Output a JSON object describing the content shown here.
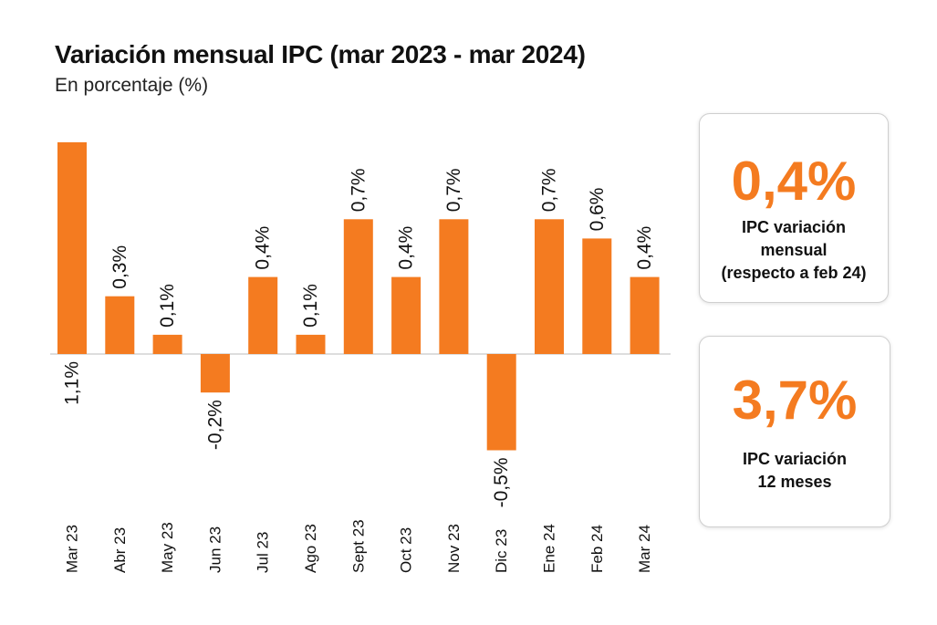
{
  "title": "Variación mensual IPC (mar 2023 - mar 2024)",
  "subtitle": "En porcentaje (%)",
  "colors": {
    "bar": "#f47b20",
    "accent": "#f47b20",
    "axis": "#bbbbbb"
  },
  "chart_data": {
    "type": "bar",
    "title": "Variación mensual IPC (mar 2023 - mar 2024)",
    "ylabel": "En porcentaje (%)",
    "ylim": [
      -0.6,
      1.2
    ],
    "categories": [
      "Mar 23",
      "Abr 23",
      "May 23",
      "Jun 23",
      "Jul 23",
      "Ago 23",
      "Sept 23",
      "Oct 23",
      "Nov 23",
      "Dic 23",
      "Ene 24",
      "Feb 24",
      "Mar 24"
    ],
    "values": [
      1.1,
      0.3,
      0.1,
      -0.2,
      0.4,
      0.1,
      0.7,
      0.4,
      0.7,
      -0.5,
      0.7,
      0.6,
      0.4
    ],
    "data_labels": [
      "1,1%",
      "0,3%",
      "0,1%",
      "-0,2%",
      "0,4%",
      "0,1%",
      "0,7%",
      "0,4%",
      "0,7%",
      "-0,5%",
      "0,7%",
      "0,6%",
      "0,4%"
    ]
  },
  "cards": {
    "monthly": {
      "value": "0,4%",
      "line1": "IPC variación",
      "line2": "mensual",
      "line3": "(respecto a feb 24)"
    },
    "yearly": {
      "value": "3,7%",
      "line1": "IPC variación",
      "line2": "12 meses"
    }
  }
}
